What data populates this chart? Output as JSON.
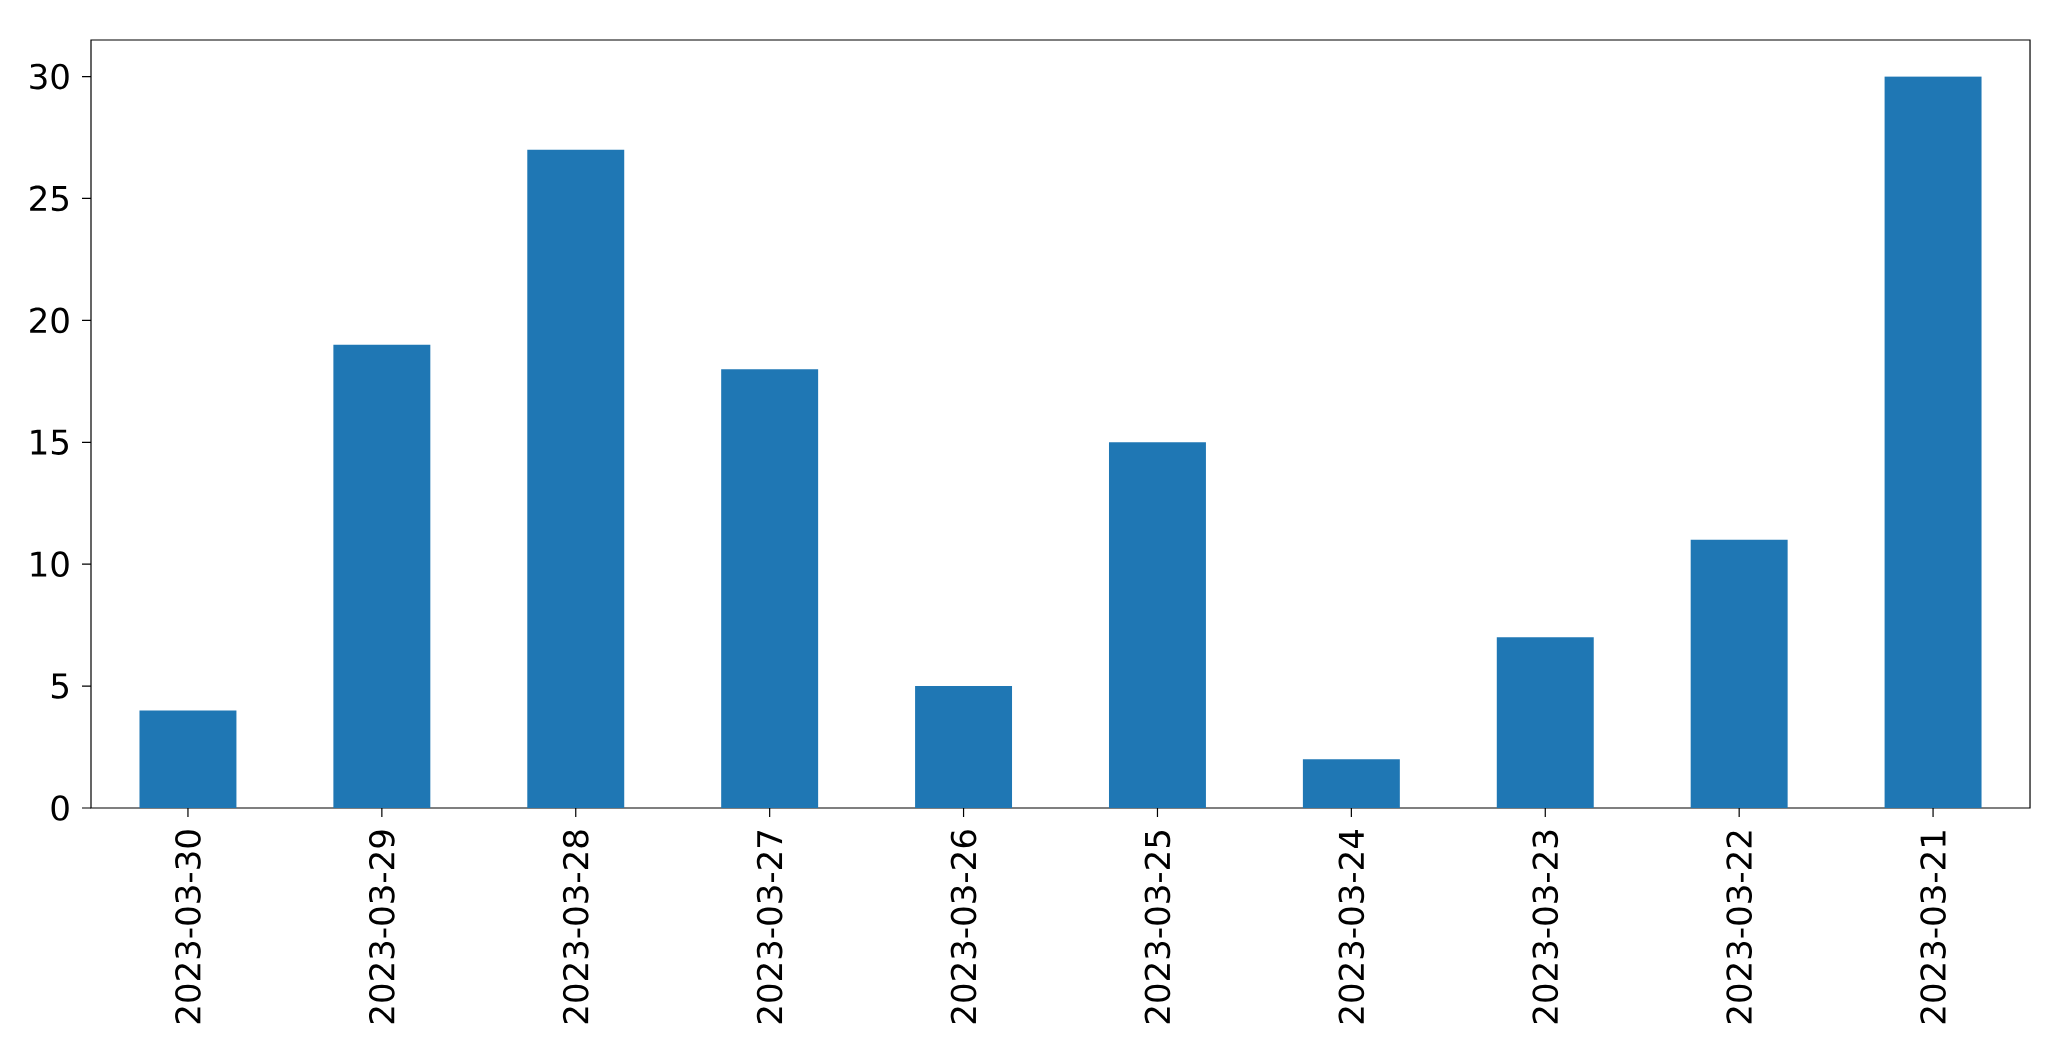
{
  "chart_data": {
    "type": "bar",
    "categories": [
      "2023-03-30",
      "2023-03-29",
      "2023-03-28",
      "2023-03-27",
      "2023-03-26",
      "2023-03-25",
      "2023-03-24",
      "2023-03-23",
      "2023-03-22",
      "2023-03-21"
    ],
    "values": [
      4,
      19,
      27,
      18,
      5,
      15,
      2,
      7,
      11,
      30
    ],
    "color": "#1f77b4",
    "ylim": [
      0,
      31.5
    ],
    "yticks": [
      0,
      5,
      10,
      15,
      20,
      25,
      30
    ]
  }
}
